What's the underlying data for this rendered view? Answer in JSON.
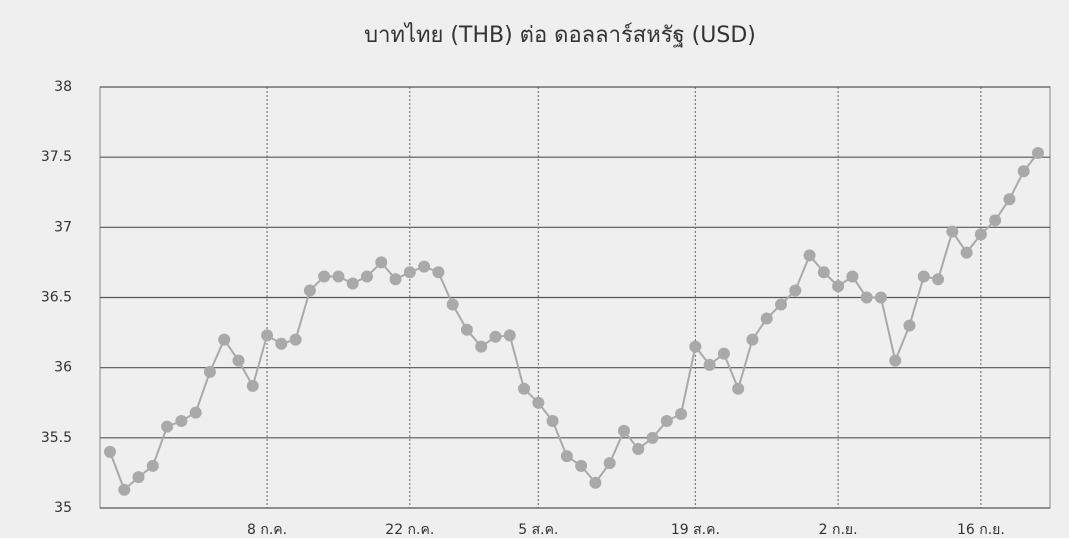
{
  "chart_data": {
    "type": "line",
    "title": "บาทไทย (THB) ต่อ ดอลลาร์สหรัฐ (USD)",
    "categories": [
      null,
      null,
      null,
      null,
      null,
      null,
      null,
      null,
      null,
      null,
      null,
      "8 ก.ค.",
      null,
      null,
      null,
      null,
      null,
      null,
      null,
      null,
      null,
      "22 ก.ค.",
      null,
      null,
      null,
      null,
      null,
      null,
      null,
      null,
      "5 ส.ค.",
      null,
      null,
      null,
      null,
      null,
      null,
      null,
      null,
      null,
      null,
      "19 ส.ค.",
      null,
      null,
      null,
      null,
      null,
      null,
      null,
      null,
      null,
      "2 ก.ย.",
      null,
      null,
      null,
      null,
      null,
      null,
      null,
      null,
      null,
      "16 ก.ย.",
      null,
      null,
      null,
      null
    ],
    "series": [
      {
        "color": "#a9a9a9",
        "values": [
          35.4,
          35.13,
          35.22,
          35.3,
          35.58,
          35.62,
          35.68,
          35.97,
          36.2,
          36.05,
          35.87,
          36.23,
          36.17,
          36.2,
          36.55,
          36.65,
          36.65,
          36.6,
          36.65,
          36.75,
          36.63,
          36.68,
          36.72,
          36.68,
          36.45,
          36.27,
          36.15,
          36.22,
          36.23,
          35.85,
          35.75,
          35.62,
          35.37,
          35.3,
          35.18,
          35.32,
          35.55,
          35.42,
          35.5,
          35.62,
          35.67,
          36.15,
          36.02,
          36.1,
          35.85,
          36.2,
          36.35,
          36.45,
          36.55,
          36.8,
          36.68,
          36.58,
          36.65,
          36.5,
          36.5,
          36.05,
          36.3,
          36.65,
          36.63,
          36.97,
          36.82,
          36.95,
          37.05,
          37.2,
          37.4,
          37.53
        ]
      }
    ],
    "ylim": [
      35,
      38
    ],
    "yticks": [
      35,
      35.5,
      36,
      36.5,
      37,
      37.5,
      38
    ],
    "grid": true
  }
}
